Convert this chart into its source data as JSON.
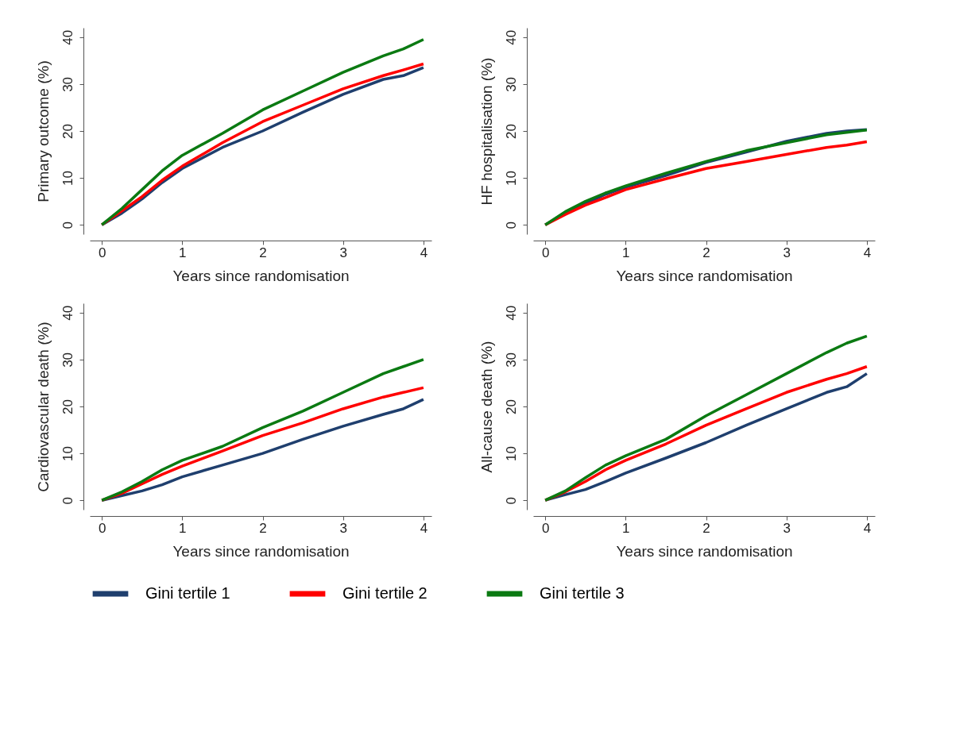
{
  "chart_data": [
    {
      "type": "line",
      "ylabel": "Primary outcome (%)",
      "xlabel": "Years since randomisation",
      "xlim": [
        -0.15,
        4.1
      ],
      "xticks": [
        0,
        1,
        2,
        3,
        4
      ],
      "ylim": [
        -2,
        42
      ],
      "yticks": [
        0,
        10,
        20,
        30,
        40
      ],
      "grid": false,
      "legend": "bottom",
      "x": [
        0,
        0.25,
        0.5,
        0.75,
        1,
        1.5,
        2,
        2.5,
        3,
        3.5,
        3.75,
        4
      ],
      "series": [
        {
          "name": "Gini tertile 1",
          "color": "#1f3f6e",
          "values": [
            0,
            2.5,
            5.5,
            9,
            12,
            16.5,
            20,
            24,
            27.8,
            31,
            31.8,
            33.5
          ]
        },
        {
          "name": "Gini tertile 2",
          "color": "#ff0000",
          "values": [
            0,
            3,
            6,
            9.5,
            12.5,
            17.5,
            22,
            25.5,
            29,
            31.8,
            33,
            34.3
          ]
        },
        {
          "name": "Gini tertile 3",
          "color": "#0b7a12",
          "values": [
            0,
            3.5,
            7.5,
            11.5,
            14.8,
            19.5,
            24.5,
            28.5,
            32.5,
            36,
            37.5,
            39.5
          ]
        }
      ]
    },
    {
      "type": "line",
      "ylabel": "HF hospitalisation (%)",
      "xlabel": "Years since randomisation",
      "xlim": [
        -0.15,
        4.1
      ],
      "xticks": [
        0,
        1,
        2,
        3,
        4
      ],
      "ylim": [
        -2,
        42
      ],
      "yticks": [
        0,
        10,
        20,
        30,
        40
      ],
      "grid": false,
      "legend": "bottom",
      "x": [
        0,
        0.25,
        0.5,
        0.75,
        1,
        1.5,
        2,
        2.5,
        3,
        3.5,
        3.75,
        4
      ],
      "series": [
        {
          "name": "Gini tertile 1",
          "color": "#1f3f6e",
          "values": [
            0,
            2.5,
            4.5,
            6.5,
            8,
            10.5,
            13.3,
            15.5,
            17.8,
            19.5,
            20,
            20.3
          ]
        },
        {
          "name": "Gini tertile 2",
          "color": "#ff0000",
          "values": [
            0,
            2.2,
            4.2,
            5.8,
            7.5,
            9.8,
            12,
            13.5,
            15,
            16.5,
            17,
            17.7
          ]
        },
        {
          "name": "Gini tertile 3",
          "color": "#0b7a12",
          "values": [
            0,
            2.8,
            5,
            6.8,
            8.3,
            11,
            13.5,
            15.8,
            17.5,
            19.2,
            19.7,
            20.2
          ]
        }
      ]
    },
    {
      "type": "line",
      "ylabel": "Cardiovascular death (%)",
      "xlabel": "Years since randomisation",
      "xlim": [
        -0.15,
        4.1
      ],
      "xticks": [
        0,
        1,
        2,
        3,
        4
      ],
      "ylim": [
        -2,
        42
      ],
      "yticks": [
        0,
        10,
        20,
        30,
        40
      ],
      "grid": false,
      "legend": "bottom",
      "x": [
        0,
        0.25,
        0.5,
        0.75,
        1,
        1.5,
        2,
        2.5,
        3,
        3.5,
        3.75,
        4
      ],
      "series": [
        {
          "name": "Gini tertile 1",
          "color": "#1f3f6e",
          "values": [
            0,
            1,
            2,
            3.3,
            5,
            7.5,
            10,
            13,
            15.8,
            18.3,
            19.5,
            21.5
          ]
        },
        {
          "name": "Gini tertile 2",
          "color": "#ff0000",
          "values": [
            0,
            1.5,
            3.5,
            5.5,
            7.3,
            10.5,
            13.8,
            16.5,
            19.5,
            22,
            23,
            24
          ]
        },
        {
          "name": "Gini tertile 3",
          "color": "#0b7a12",
          "values": [
            0,
            1.8,
            4,
            6.5,
            8.5,
            11.5,
            15.5,
            19,
            23,
            27,
            28.5,
            30
          ]
        }
      ]
    },
    {
      "type": "line",
      "ylabel": "All-cause death (%)",
      "xlabel": "Years since randomisation",
      "xlim": [
        -0.15,
        4.1
      ],
      "xticks": [
        0,
        1,
        2,
        3,
        4
      ],
      "ylim": [
        -2,
        42
      ],
      "yticks": [
        0,
        10,
        20,
        30,
        40
      ],
      "grid": false,
      "legend": "bottom",
      "x": [
        0,
        0.25,
        0.5,
        0.75,
        1,
        1.5,
        2,
        2.5,
        3,
        3.5,
        3.75,
        4
      ],
      "series": [
        {
          "name": "Gini tertile 1",
          "color": "#1f3f6e",
          "values": [
            0,
            1.2,
            2.3,
            4,
            5.8,
            9,
            12.3,
            16,
            19.5,
            23,
            24.2,
            27
          ]
        },
        {
          "name": "Gini tertile 2",
          "color": "#ff0000",
          "values": [
            0,
            1.8,
            4,
            6.5,
            8.5,
            12,
            16,
            19.5,
            23,
            25.8,
            27,
            28.5
          ]
        },
        {
          "name": "Gini tertile 3",
          "color": "#0b7a12",
          "values": [
            0,
            2,
            4.8,
            7.5,
            9.5,
            13,
            18,
            22.5,
            27,
            31.5,
            33.5,
            35
          ]
        }
      ]
    }
  ]
}
